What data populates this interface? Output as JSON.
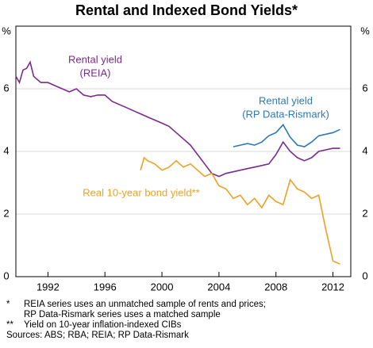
{
  "chart_data": {
    "type": "line",
    "title": "Rental and Indexed Bond Yields*",
    "y_unit": "%",
    "xlim": [
      1989.75,
      2013.25
    ],
    "xticks": [
      1992,
      1996,
      2000,
      2004,
      2008,
      2012
    ],
    "ylim": [
      0,
      8
    ],
    "yticks": [
      0,
      2,
      4,
      6
    ],
    "grid": true,
    "series": [
      {
        "name": [
          "Rental yield",
          "(REIA)"
        ],
        "color": "#7b2a8e",
        "x": [
          1989.75,
          1990,
          1990.25,
          1990.5,
          1990.75,
          1991,
          1991.25,
          1991.5,
          1992,
          1992.5,
          1993,
          1993.5,
          1994,
          1994.5,
          1995,
          1995.5,
          1996,
          1996.5,
          1997,
          1997.5,
          1998,
          1998.5,
          1999,
          1999.5,
          2000,
          2000.5,
          2001,
          2001.5,
          2002,
          2002.5,
          2003,
          2003.5,
          2004,
          2004.5,
          2005,
          2005.5,
          2006,
          2006.5,
          2007,
          2007.5,
          2008,
          2008.5,
          2009,
          2009.5,
          2010,
          2010.5,
          2011,
          2011.5,
          2012,
          2012.5
        ],
        "values": [
          6.4,
          6.2,
          6.6,
          6.65,
          6.85,
          6.4,
          6.3,
          6.2,
          6.2,
          6.1,
          6.0,
          5.9,
          6.0,
          5.8,
          5.75,
          5.8,
          5.8,
          5.6,
          5.5,
          5.4,
          5.3,
          5.2,
          5.1,
          5.0,
          4.9,
          4.8,
          4.6,
          4.4,
          4.2,
          3.9,
          3.6,
          3.3,
          3.2,
          3.3,
          3.35,
          3.4,
          3.45,
          3.5,
          3.55,
          3.6,
          3.9,
          4.3,
          4.0,
          3.8,
          3.7,
          3.8,
          4.0,
          4.05,
          4.1,
          4.1
        ]
      },
      {
        "name": [
          "Rental yield",
          "(RP Data-Rismark)"
        ],
        "color": "#2b7ab8",
        "x": [
          2005,
          2005.5,
          2006,
          2006.5,
          2007,
          2007.5,
          2008,
          2008.5,
          2009,
          2009.5,
          2010,
          2010.5,
          2011,
          2011.5,
          2012,
          2012.5
        ],
        "values": [
          4.15,
          4.2,
          4.25,
          4.2,
          4.3,
          4.5,
          4.6,
          4.85,
          4.45,
          4.2,
          4.15,
          4.3,
          4.5,
          4.55,
          4.6,
          4.7
        ]
      },
      {
        "name": [
          "Real 10-year bond yield**"
        ],
        "color": "#f0a020",
        "x": [
          1998.5,
          1998.75,
          1999,
          1999.5,
          2000,
          2000.5,
          2001,
          2001.5,
          2002,
          2002.5,
          2003,
          2003.5,
          2004,
          2004.5,
          2005,
          2005.5,
          2006,
          2006.5,
          2007,
          2007.5,
          2008,
          2008.5,
          2009,
          2009.5,
          2010,
          2010.5,
          2011,
          2011.5,
          2012,
          2012.5
        ],
        "values": [
          3.4,
          3.8,
          3.7,
          3.6,
          3.4,
          3.5,
          3.7,
          3.5,
          3.6,
          3.4,
          3.2,
          3.3,
          2.9,
          2.8,
          2.5,
          2.6,
          2.3,
          2.5,
          2.2,
          2.6,
          2.4,
          2.3,
          3.1,
          2.8,
          2.7,
          2.5,
          2.6,
          1.5,
          0.5,
          0.4
        ]
      }
    ],
    "notes": [
      {
        "mark": "*",
        "lines": [
          "REIA series uses an unmatched sample of rents and prices;",
          "RP Data-Rismark series uses a matched sample"
        ]
      },
      {
        "mark": "**",
        "lines": [
          "Yield on 10-year inflation-indexed CIBs"
        ]
      }
    ],
    "source": "Sources: ABS; RBA; REIA; RP Data-Rismark"
  }
}
